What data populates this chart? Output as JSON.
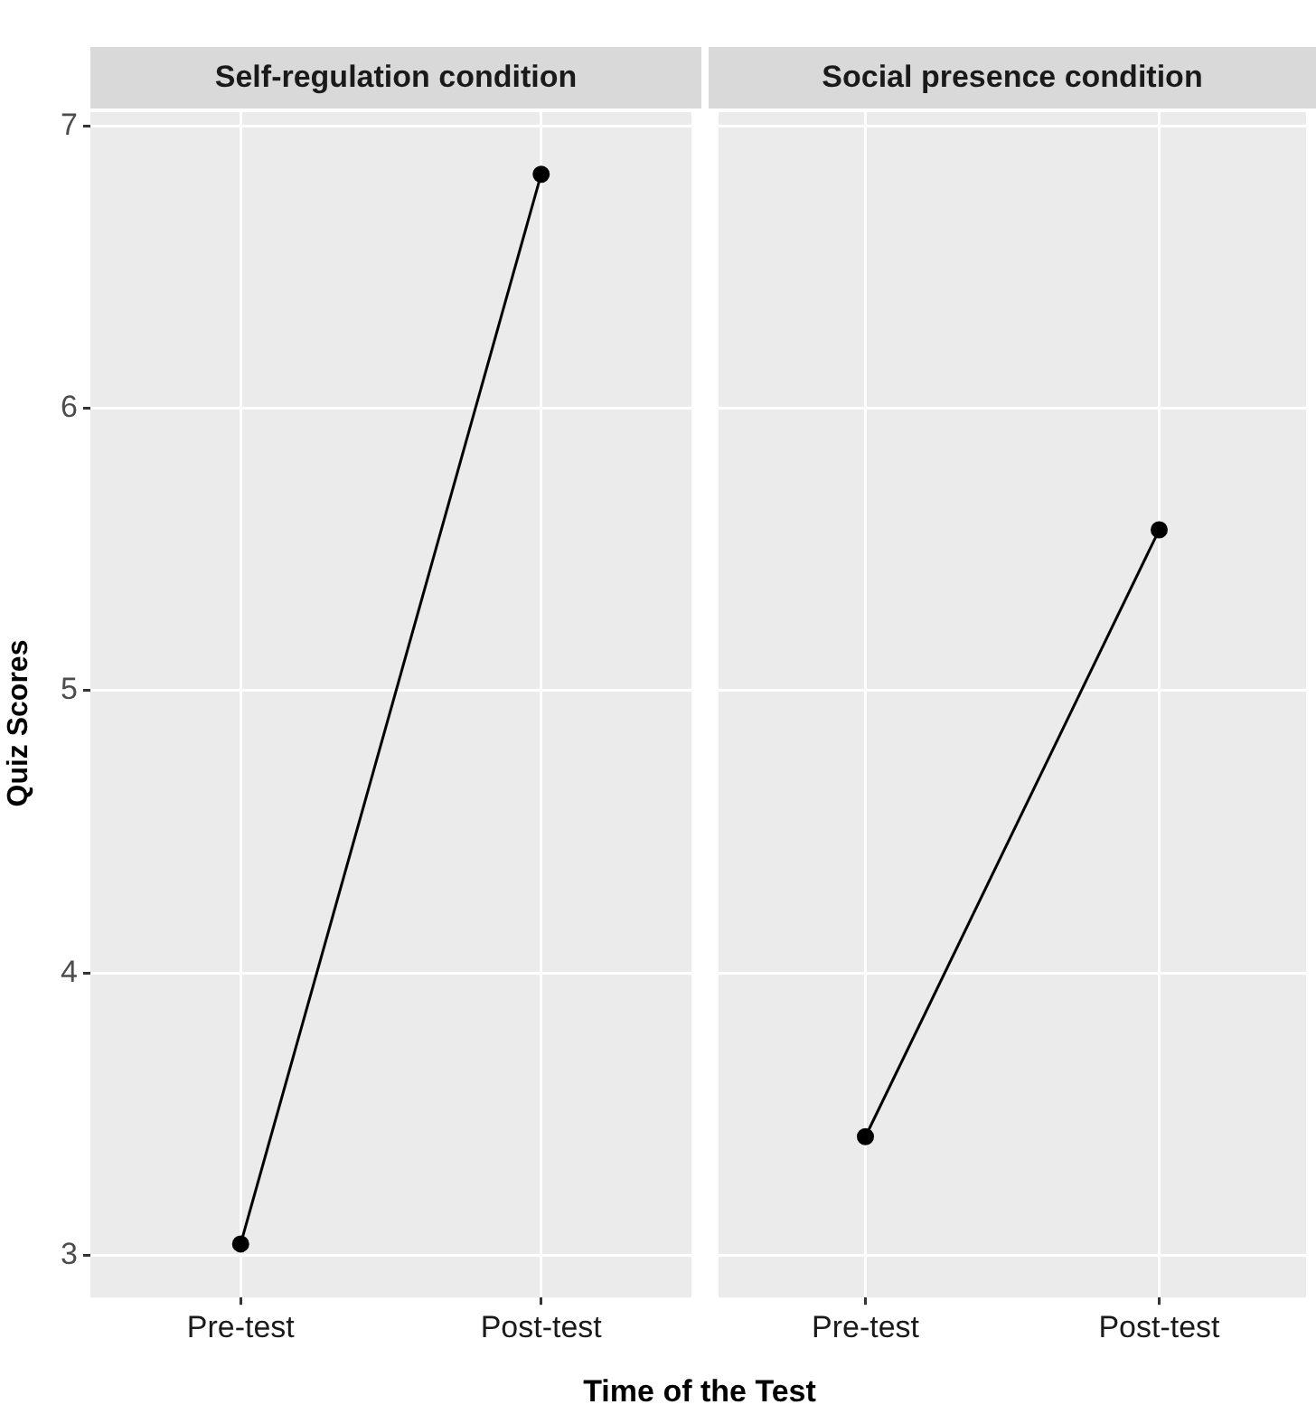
{
  "chart_data": [
    {
      "type": "line",
      "title": "Self-regulation condition",
      "ylabel": "Quiz Scores",
      "xlabel": "Time of the Test",
      "categories": [
        "Pre-test",
        "Post-test"
      ],
      "series": [
        {
          "color": "#000000",
          "values": [
            3.04,
            6.83
          ]
        }
      ],
      "ylim": [
        2.85,
        7.05
      ],
      "yticks": [
        3,
        4,
        5,
        6,
        7
      ],
      "grid": true,
      "legend": false,
      "marker": "circle",
      "line_style": "solid"
    },
    {
      "type": "line",
      "title": "Social presence condition",
      "categories": [
        "Pre-test",
        "Post-test"
      ],
      "series": [
        {
          "color": "#000000",
          "values": [
            3.42,
            5.57
          ]
        }
      ],
      "ylim": [
        2.85,
        7.05
      ],
      "yticks": [
        3,
        4,
        5,
        6,
        7
      ],
      "grid": true,
      "legend": false,
      "marker": "circle",
      "line_style": "solid",
      "tick_labels": "x"
    }
  ]
}
